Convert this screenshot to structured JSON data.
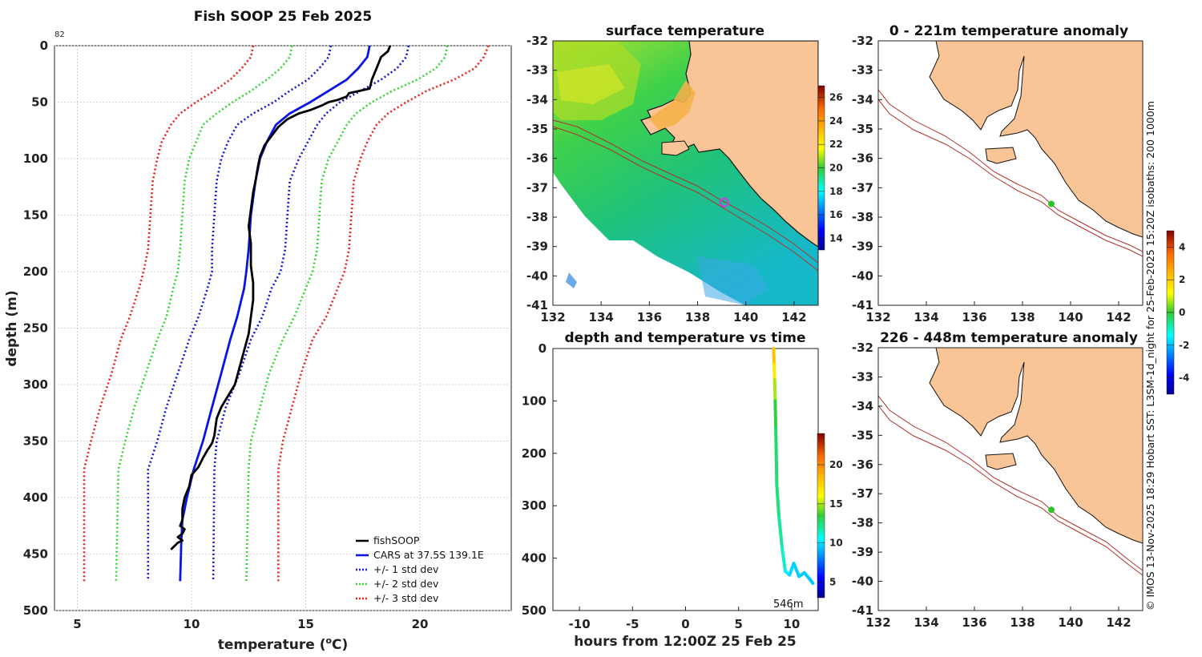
{
  "colors": {
    "fishsoop": "#000000",
    "cars": "#0a14e6",
    "std1": "#1515d6",
    "std2": "#33d633",
    "std3": "#e8221a",
    "land": "#f9c596",
    "coast": "#111111",
    "isobath": "#b0302a",
    "marker_green": "#2fc22f",
    "marker_magenta": "#d23adf"
  },
  "profile_label": "82",
  "chart_data": [
    {
      "id": "profile",
      "type": "line",
      "title": "Fish SOOP 25 Feb 2025",
      "xlabel": "temperature (",
      "xlabel_sup": "o",
      "xlabel_end": "C)",
      "ylabel": "depth (m)",
      "xlim": [
        4,
        24
      ],
      "ylim": [
        0,
        500
      ],
      "xticks": [
        5,
        10,
        15,
        20
      ],
      "yticks": [
        0,
        50,
        100,
        150,
        200,
        250,
        300,
        350,
        400,
        450,
        500
      ],
      "legend": [
        "fishSOOP",
        "CARS at 37.5S 139.1E",
        "+/- 1 std dev",
        "+/- 2 std dev",
        "+/- 3 std dev"
      ],
      "series": [
        {
          "name": "fishSOOP",
          "temp": [
            18.7,
            18.6,
            18.3,
            18.1,
            17.9,
            17.8,
            16.9,
            16.8,
            16.4,
            16.0,
            15.7,
            15.2,
            14.7,
            14.2,
            13.8,
            13.5,
            13.2,
            13.0,
            12.9,
            12.8,
            12.7,
            12.6,
            12.5,
            12.6,
            12.6,
            12.6,
            12.7,
            12.7,
            12.6,
            12.5,
            12.3,
            12.1,
            11.9,
            11.6,
            11.3,
            11.1,
            11.0,
            10.9,
            10.7,
            10.5,
            10.3,
            10.0,
            9.9,
            9.7,
            9.6,
            9.6,
            9.5,
            9.7,
            9.6,
            9.4,
            9.6,
            9.4,
            9.1
          ],
          "depth": [
            0,
            5,
            10,
            20,
            30,
            38,
            42,
            45,
            48,
            50,
            53,
            57,
            60,
            65,
            72,
            80,
            88,
            98,
            108,
            120,
            130,
            145,
            160,
            175,
            185,
            195,
            210,
            225,
            240,
            255,
            270,
            285,
            300,
            310,
            320,
            330,
            345,
            352,
            358,
            365,
            373,
            380,
            390,
            400,
            410,
            420,
            425,
            428,
            432,
            435,
            438,
            440,
            446
          ]
        },
        {
          "name": "CARS at 37.5S 139.1E",
          "temp": [
            17.8,
            17.7,
            17.3,
            16.8,
            16.0,
            15.2,
            14.3,
            13.7,
            13.3,
            13.0,
            12.8,
            12.6,
            12.5,
            12.4,
            12.3,
            12.0,
            11.7,
            11.3,
            10.9,
            10.5,
            10.1,
            9.8,
            9.6,
            9.55,
            9.5
          ],
          "depth": [
            0,
            10,
            20,
            30,
            40,
            50,
            60,
            70,
            85,
            100,
            120,
            150,
            180,
            200,
            215,
            240,
            260,
            290,
            320,
            350,
            375,
            400,
            420,
            440,
            474
          ]
        },
        {
          "name": "+1 std",
          "temp": [
            19.5,
            19.4,
            19.0,
            18.3,
            17.4,
            16.5,
            15.9,
            15.5,
            15.1,
            14.7,
            14.3,
            14.2,
            14.1,
            13.9,
            13.5,
            13.1,
            12.6,
            12.1,
            11.5,
            11.1,
            11.0,
            10.95
          ],
          "depth": [
            0,
            10,
            20,
            30,
            40,
            50,
            60,
            70,
            85,
            100,
            120,
            150,
            180,
            200,
            215,
            240,
            260,
            290,
            320,
            350,
            375,
            474
          ]
        },
        {
          "name": "-1 std",
          "temp": [
            16.1,
            16.0,
            15.6,
            15.1,
            14.3,
            13.6,
            12.7,
            12.0,
            11.6,
            11.3,
            11.1,
            11.0,
            10.9,
            10.9,
            10.7,
            10.3,
            9.9,
            9.4,
            8.9,
            8.5,
            8.1,
            8.1
          ],
          "depth": [
            0,
            10,
            20,
            30,
            40,
            50,
            60,
            70,
            85,
            100,
            120,
            150,
            180,
            200,
            215,
            240,
            260,
            290,
            320,
            350,
            375,
            474
          ]
        },
        {
          "name": "+2 std",
          "temp": [
            21.2,
            21.1,
            20.7,
            19.9,
            18.8,
            17.9,
            17.2,
            16.8,
            16.4,
            16.0,
            15.7,
            15.6,
            15.5,
            15.3,
            15.0,
            14.5,
            14.0,
            13.4,
            13.0,
            12.6,
            12.5,
            12.4
          ],
          "depth": [
            0,
            10,
            20,
            30,
            40,
            50,
            60,
            70,
            85,
            100,
            120,
            150,
            180,
            200,
            215,
            240,
            260,
            290,
            320,
            350,
            375,
            474
          ]
        },
        {
          "name": "-2 std",
          "temp": [
            14.4,
            14.3,
            13.9,
            13.3,
            12.6,
            11.8,
            11.1,
            10.5,
            10.2,
            9.9,
            9.7,
            9.6,
            9.5,
            9.4,
            9.2,
            8.9,
            8.5,
            8.0,
            7.5,
            7.1,
            6.8,
            6.7
          ],
          "depth": [
            0,
            10,
            20,
            30,
            40,
            50,
            60,
            70,
            85,
            100,
            120,
            150,
            180,
            200,
            215,
            240,
            260,
            290,
            320,
            350,
            375,
            474
          ]
        },
        {
          "name": "+3 std",
          "temp": [
            23.0,
            22.8,
            22.4,
            21.5,
            20.3,
            19.4,
            18.6,
            18.1,
            17.7,
            17.4,
            17.1,
            17.0,
            16.9,
            16.7,
            16.4,
            15.9,
            15.3,
            14.8,
            14.4,
            14.0,
            13.8,
            13.8
          ],
          "depth": [
            0,
            10,
            20,
            30,
            40,
            50,
            60,
            70,
            85,
            100,
            120,
            150,
            180,
            200,
            215,
            240,
            260,
            290,
            320,
            350,
            375,
            474
          ]
        },
        {
          "name": "-3 std",
          "temp": [
            12.7,
            12.6,
            12.2,
            11.7,
            11.0,
            10.2,
            9.5,
            9.1,
            8.7,
            8.5,
            8.3,
            8.2,
            8.1,
            7.9,
            7.7,
            7.3,
            6.9,
            6.5,
            6.0,
            5.6,
            5.3,
            5.3
          ],
          "depth": [
            0,
            10,
            20,
            30,
            40,
            50,
            60,
            70,
            85,
            100,
            120,
            150,
            180,
            200,
            215,
            240,
            260,
            290,
            320,
            350,
            375,
            474
          ]
        }
      ]
    },
    {
      "id": "sst_map",
      "type": "heatmap",
      "title": "surface temperature",
      "xlim": [
        132,
        143
      ],
      "ylim": [
        -41,
        -32
      ],
      "xticks": [
        132,
        134,
        136,
        138,
        140,
        142
      ],
      "yticks": [
        -32,
        -33,
        -34,
        -35,
        -36,
        -37,
        -38,
        -39,
        -40,
        -41
      ],
      "colorbar_ticks": [
        14,
        16,
        18,
        20,
        22,
        24,
        26
      ],
      "colorbar_range": [
        13,
        27
      ],
      "marker_lon": 139.1,
      "marker_lat": -37.5
    },
    {
      "id": "depth_time",
      "type": "line",
      "title": "depth and temperature vs time",
      "xlabel": "hours from 12:00Z 25 Feb 25",
      "xlim": [
        -12.5,
        12.5
      ],
      "ylim": [
        0,
        500
      ],
      "xticks": [
        -10,
        -5,
        0,
        5,
        10
      ],
      "yticks": [
        0,
        100,
        200,
        300,
        400,
        500
      ],
      "colorbar_ticks": [
        5,
        10,
        15,
        20
      ],
      "colorbar_range": [
        3,
        24
      ],
      "annotation": "546m",
      "hours": [
        8.3,
        8.35,
        8.4,
        8.45,
        8.5,
        8.55,
        8.6,
        8.8,
        9.1,
        9.4,
        9.8,
        10.2,
        10.7,
        11.2,
        11.7,
        12.0
      ],
      "depth": [
        0,
        30,
        60,
        100,
        150,
        200,
        260,
        320,
        380,
        425,
        432,
        410,
        435,
        428,
        440,
        448
      ],
      "temp": [
        18.7,
        17.5,
        16.0,
        13.8,
        12.8,
        12.6,
        12.5,
        12.3,
        11.8,
        10.9,
        10.0,
        9.7,
        9.6,
        9.6,
        9.5,
        9.4
      ]
    },
    {
      "id": "anom_top",
      "type": "heatmap",
      "title": "0 - 221m temperature anomaly",
      "xlim": [
        132,
        143
      ],
      "ylim": [
        -41,
        -32
      ],
      "xticks": [
        132,
        134,
        136,
        138,
        140,
        142
      ],
      "yticks": [
        -32,
        -33,
        -34,
        -35,
        -36,
        -37,
        -38,
        -39,
        -40,
        -41
      ],
      "marker_lon": 139.2,
      "marker_lat": -37.55,
      "marker_value": 0.3
    },
    {
      "id": "anom_bottom",
      "type": "heatmap",
      "title": "226 - 448m temperature anomaly",
      "xlim": [
        132,
        143
      ],
      "ylim": [
        -41,
        -32
      ],
      "xticks": [
        132,
        134,
        136,
        138,
        140,
        142
      ],
      "yticks": [
        -32,
        -33,
        -34,
        -35,
        -36,
        -37,
        -38,
        -39,
        -40,
        -41
      ],
      "marker_lon": 139.2,
      "marker_lat": -37.55,
      "marker_value": 0.2,
      "colorbar_ticks": [
        -4,
        -2,
        0,
        2,
        4
      ],
      "colorbar_range": [
        -5,
        5
      ]
    }
  ],
  "side_caption": "© IMOS 13-Nov-2025 18:29 Hobart SST: L3SM-1d_night for 25-Feb-2025 15:20Z isobaths: 200  1000m"
}
